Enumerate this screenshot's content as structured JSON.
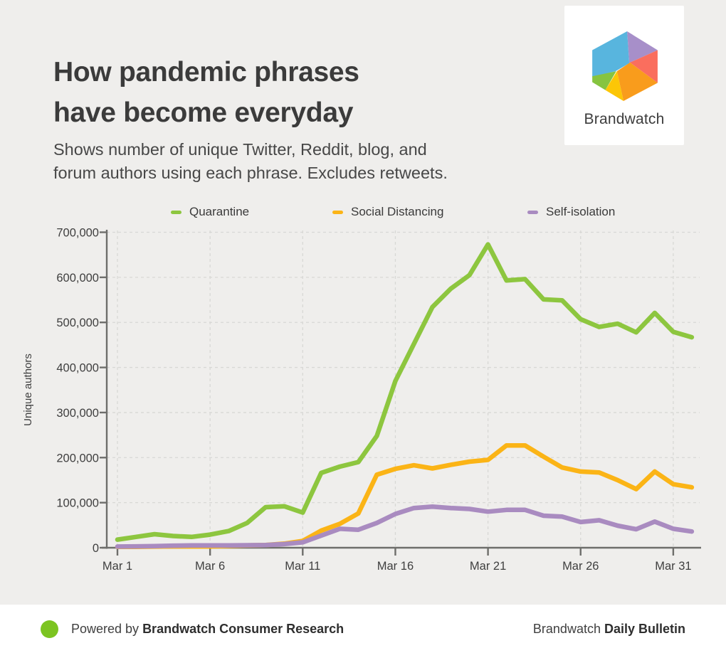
{
  "page": {
    "background": "#efeeec"
  },
  "header": {
    "title": "How pandemic phrases\nhave become everyday",
    "subtitle": "Shows number of unique Twitter, Reddit, blog, and\nforum authors using each phrase. Excludes retweets."
  },
  "logo": {
    "label": "Brandwatch",
    "colors": {
      "blue": "#58b5de",
      "purple": "#a78fc9",
      "red": "#fa6e5e",
      "orange": "#f99c1c",
      "yellow": "#fcc606",
      "green": "#86c440"
    }
  },
  "chart_data": {
    "type": "line",
    "title": "",
    "xlabel": "",
    "ylabel": "Unique authors",
    "ylim": [
      0,
      700000
    ],
    "grid": "dashed",
    "legend_position": "top",
    "axis_color": "#6e6e6b",
    "grid_color": "#d8d8d5",
    "label_color": "#3f3f3f",
    "y_tick_labels": [
      "0",
      "100,000",
      "200,000",
      "300,000",
      "400,000",
      "500,000",
      "600,000",
      "700,000"
    ],
    "x_tick_labels": [
      "Mar 1",
      "Mar 6",
      "Mar 11",
      "Mar 16",
      "Mar 21",
      "Mar 26",
      "Mar 31"
    ],
    "x": [
      "Mar 1",
      "Mar 2",
      "Mar 3",
      "Mar 4",
      "Mar 5",
      "Mar 6",
      "Mar 7",
      "Mar 8",
      "Mar 9",
      "Mar 10",
      "Mar 11",
      "Mar 12",
      "Mar 13",
      "Mar 14",
      "Mar 15",
      "Mar 16",
      "Mar 17",
      "Mar 18",
      "Mar 19",
      "Mar 20",
      "Mar 21",
      "Mar 22",
      "Mar 23",
      "Mar 24",
      "Mar 25",
      "Mar 26",
      "Mar 27",
      "Mar 28",
      "Mar 29",
      "Mar 30",
      "Mar 31",
      "Apr 1"
    ],
    "series": [
      {
        "name": "Quarantine",
        "color": "#8dc63f",
        "values": [
          18000,
          24000,
          30000,
          26000,
          24000,
          29000,
          37000,
          55000,
          90000,
          92000,
          78000,
          166000,
          180000,
          190000,
          248000,
          370000,
          452000,
          534000,
          575000,
          605000,
          673000,
          593000,
          596000,
          551000,
          549000,
          507000,
          490000,
          497000,
          478000,
          521000,
          479000,
          467000
        ]
      },
      {
        "name": "Social Distancing",
        "color": "#fbb416",
        "values": [
          2000,
          2000,
          2500,
          3000,
          3000,
          3000,
          4000,
          5000,
          6000,
          9000,
          15000,
          38000,
          53000,
          76000,
          162000,
          175000,
          183000,
          176000,
          184000,
          191000,
          195000,
          227000,
          227000,
          202000,
          178000,
          169000,
          167000,
          150000,
          130000,
          169000,
          141000,
          134000
        ]
      },
      {
        "name": "Self-isolation",
        "color": "#a98bc0",
        "values": [
          2500,
          3000,
          3500,
          4500,
          5000,
          5000,
          5000,
          5500,
          6000,
          8000,
          12000,
          27000,
          42000,
          40000,
          55000,
          75000,
          88000,
          91000,
          88000,
          86000,
          80000,
          84000,
          84000,
          71000,
          69000,
          57000,
          61000,
          49000,
          41000,
          58000,
          42000,
          36000
        ]
      }
    ]
  },
  "footer": {
    "dot_color": "#7cc421",
    "powered_prefix": "Powered by ",
    "powered_bold": "Brandwatch Consumer Research",
    "right_prefix": "Brandwatch ",
    "right_bold": "Daily Bulletin"
  }
}
